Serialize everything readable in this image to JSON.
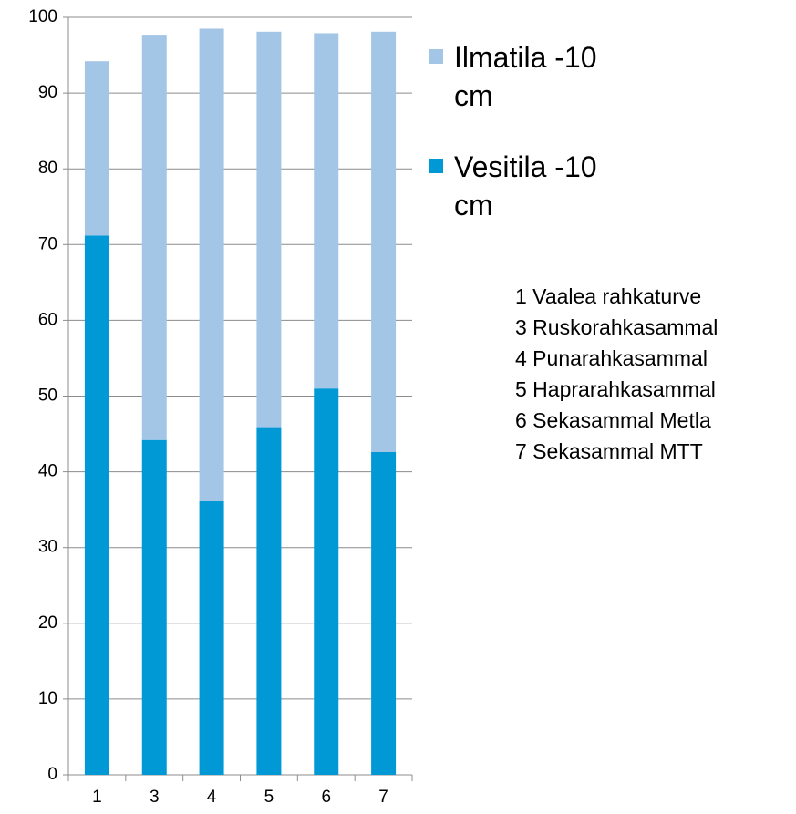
{
  "chart_data": {
    "type": "stacked_bar",
    "categories": [
      "1",
      "3",
      "4",
      "5",
      "6",
      "7"
    ],
    "series": [
      {
        "name": "Vesitila -10 cm",
        "color": "#0099d6",
        "values": [
          71.2,
          44.2,
          36.1,
          45.9,
          51.0,
          42.6
        ]
      },
      {
        "name": "Ilmatila -10 cm",
        "color": "#a3c6e6",
        "values": [
          23.0,
          53.5,
          62.4,
          52.2,
          46.9,
          55.5
        ]
      }
    ],
    "ylim": [
      0,
      100
    ],
    "yticks": [
      0,
      10,
      20,
      30,
      40,
      50,
      60,
      70,
      80,
      90,
      100
    ],
    "grid": true,
    "legend": "right",
    "annotations": [
      "1 Vaalea rahkaturve",
      "3 Ruskorahkasammal",
      "4 Punarahkasammal",
      "5 Haprarahkasammal",
      "6 Sekasammal Metla",
      "7 Sekasammal MTT"
    ]
  }
}
